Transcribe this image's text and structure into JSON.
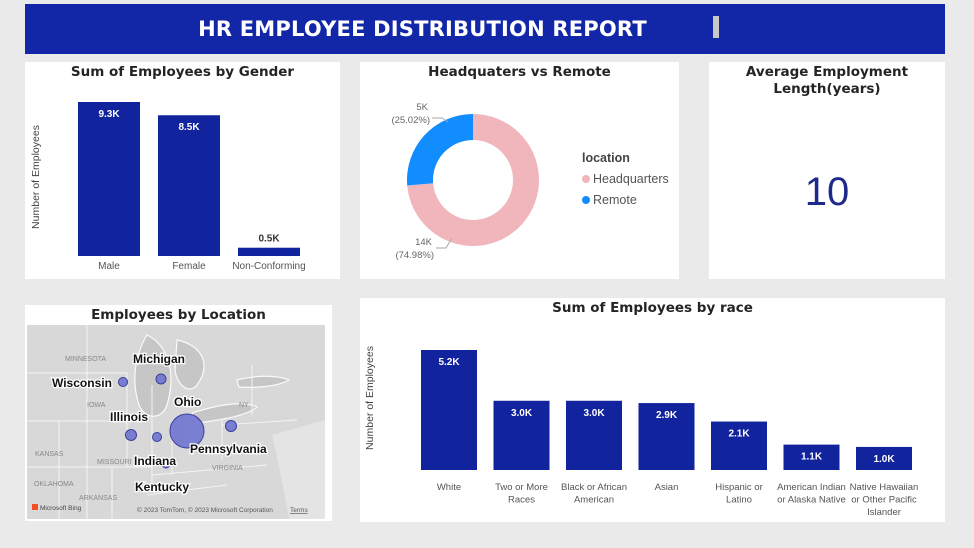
{
  "header": {
    "title": "HR EMPLOYEE DISTRIBUTION REPORT"
  },
  "colors": {
    "banner": "#1226a8",
    "bar": "#12239e",
    "headquarters": "#f0b6bb",
    "remote": "#118dff",
    "bubble": "#6a6fd0"
  },
  "gender": {
    "title": "Sum of Employees by Gender",
    "chart_data": {
      "type": "bar",
      "title": "Sum of Employees by Gender",
      "ylabel": "Number of Employees",
      "categories": [
        "Male",
        "Female",
        "Non-Conforming"
      ],
      "values": [
        9300,
        8500,
        500
      ],
      "labels": [
        "9.3K",
        "8.5K",
        "0.5K"
      ],
      "ylim": [
        0,
        9300
      ]
    }
  },
  "location_split": {
    "title": "Headquaters vs Remote",
    "legend_title": "location",
    "chart_data": {
      "type": "pie",
      "title": "Headquaters vs Remote",
      "categories": [
        "Headquarters",
        "Remote"
      ],
      "values": [
        14000,
        5000
      ],
      "percent": [
        74.98,
        25.02
      ],
      "value_labels": [
        "14K",
        "5K"
      ],
      "percent_labels": [
        "(74.98%)",
        "(25.02%)"
      ]
    }
  },
  "tenure": {
    "title_line1": "Average Employment",
    "title_line2": "Length(years)",
    "value": "10"
  },
  "map": {
    "title": "Employees by Location",
    "state_labels": [
      "Michigan",
      "Wisconsin",
      "Ohio",
      "Illinois",
      "Indiana",
      "Pennsylvania",
      "Kentucky"
    ],
    "base_labels": [
      "MINNESOTA",
      "IOWA",
      "MISSOURI",
      "KANSAS",
      "OKLAHOMA",
      "ARKANSAS",
      "NY",
      "VIRGINIA"
    ],
    "attribution": "© 2023 TomTom, © 2023 Microsoft Corporation",
    "terms": "Terms",
    "logo": "Microsoft Bing"
  },
  "race": {
    "title": "Sum of Employees by race",
    "chart_data": {
      "type": "bar",
      "title": "Sum of Employees by race",
      "ylabel": "Number of Employees",
      "categories": [
        "White",
        "Two or More Races",
        "Black or African American",
        "Asian",
        "Hispanic or Latino",
        "American Indian or Alaska Native",
        "Native Hawaiian or Other Pacific Islander"
      ],
      "category_lines": [
        [
          "White"
        ],
        [
          "Two or More",
          "Races"
        ],
        [
          "Black or African",
          "American"
        ],
        [
          "Asian"
        ],
        [
          "Hispanic or",
          "Latino"
        ],
        [
          "American Indian",
          "or Alaska Native"
        ],
        [
          "Native Hawaiian",
          "or Other Pacific",
          "Islander"
        ]
      ],
      "values": [
        5200,
        3000,
        3000,
        2900,
        2100,
        1100,
        1000
      ],
      "labels": [
        "5.2K",
        "3.0K",
        "3.0K",
        "2.9K",
        "2.1K",
        "1.1K",
        "1.0K"
      ],
      "ylim": [
        0,
        5200
      ]
    }
  }
}
